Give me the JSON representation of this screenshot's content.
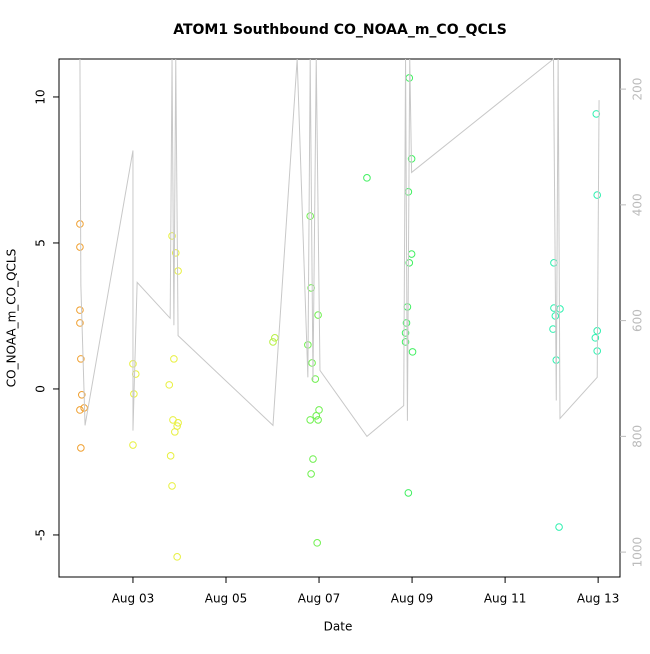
{
  "chart_data": {
    "type": "scatter",
    "title": "ATOM1 Southbound CO_NOAA_m_CO_QCLS",
    "x_label": "Date",
    "y_label": "CO_NOAA_m_CO_QCLS",
    "xlim": [
      1.41,
      13.47
    ],
    "xticks": [
      {
        "value": 3,
        "label": "Aug 03"
      },
      {
        "value": 5,
        "label": "Aug 05"
      },
      {
        "value": 7,
        "label": "Aug 07"
      },
      {
        "value": 9,
        "label": "Aug 09"
      },
      {
        "value": 11,
        "label": "Aug 11"
      },
      {
        "value": 13,
        "label": "Aug 13"
      }
    ],
    "ylim": [
      -6.44,
      11.3
    ],
    "yticks": [
      -5,
      0,
      5,
      10
    ],
    "y2lim": [
      1043,
      148
    ],
    "y2ticks": [
      200,
      400,
      600,
      800,
      1000
    ],
    "series": [
      {
        "color": "#f0a030",
        "x": [
          1.86,
          1.86,
          1.86,
          1.86,
          1.88,
          1.9,
          1.86,
          1.95,
          1.88
        ],
        "values": [
          5.65,
          4.86,
          2.7,
          2.26,
          1.03,
          -0.2,
          -0.72,
          -0.65,
          -2.02
        ]
      },
      {
        "color": "#e8f040",
        "x": [
          3.0,
          3.06,
          3.02,
          3.0,
          3.84,
          3.92,
          3.97,
          3.88,
          3.78,
          3.86,
          3.97,
          3.95,
          3.9,
          3.81,
          3.84,
          3.95
        ],
        "values": [
          0.86,
          0.51,
          -0.17,
          -1.92,
          5.24,
          4.66,
          4.04,
          1.03,
          0.14,
          -1.06,
          -1.16,
          -1.27,
          -1.47,
          -2.29,
          -3.32,
          -5.75
        ]
      },
      {
        "color": "#b8f048",
        "x": [
          6.01,
          6.05
        ],
        "values": [
          1.61,
          1.75
        ]
      },
      {
        "color": "#70f050",
        "x": [
          6.81,
          6.83,
          6.98,
          6.76,
          6.85,
          6.92,
          7.0,
          6.94,
          6.81,
          6.98,
          6.87,
          6.83,
          6.96
        ],
        "values": [
          5.92,
          3.46,
          2.53,
          1.51,
          0.89,
          0.34,
          -0.72,
          -0.92,
          -1.06,
          -1.06,
          -2.4,
          -2.91,
          -5.27
        ]
      },
      {
        "color": "#40f060",
        "x": [
          8.03,
          8.94,
          8.99,
          8.92,
          8.99,
          8.94,
          8.9,
          8.88,
          8.86,
          8.86,
          9.01,
          8.92
        ],
        "values": [
          7.23,
          10.65,
          7.88,
          6.75,
          4.62,
          4.32,
          2.81,
          2.26,
          1.92,
          1.61,
          1.27,
          -3.56
        ]
      },
      {
        "color": "#30f0b0",
        "x": [
          12.05,
          12.05,
          12.08,
          12.18,
          12.03,
          12.1,
          12.16,
          12.96,
          12.98,
          12.98,
          12.94,
          12.98
        ],
        "values": [
          4.32,
          2.77,
          2.5,
          2.74,
          2.05,
          0.99,
          -4.73,
          9.42,
          6.64,
          1.99,
          1.75,
          1.3
        ]
      },
      {
        "color": "#c8c8c8",
        "axis": "y2",
        "x": [
          1.86,
          1.88,
          1.97,
          3.0,
          3.0,
          3.09,
          3.8,
          3.84,
          3.88,
          3.92,
          3.97,
          6.01,
          6.53,
          6.76,
          6.81,
          6.87,
          6.94,
          7.02,
          8.03,
          8.82,
          8.86,
          8.9,
          8.95,
          8.99,
          12.04,
          12.1,
          12.14,
          12.18,
          12.98,
          13.02
        ],
        "values": [
          148,
          539,
          781,
          306,
          790,
          534,
          596,
          148,
          608,
          148,
          626,
          781,
          148,
          698,
          148,
          703,
          148,
          686,
          800,
          747,
          148,
          773,
          148,
          344,
          148,
          738,
          148,
          769,
          698,
          219
        ]
      }
    ]
  }
}
